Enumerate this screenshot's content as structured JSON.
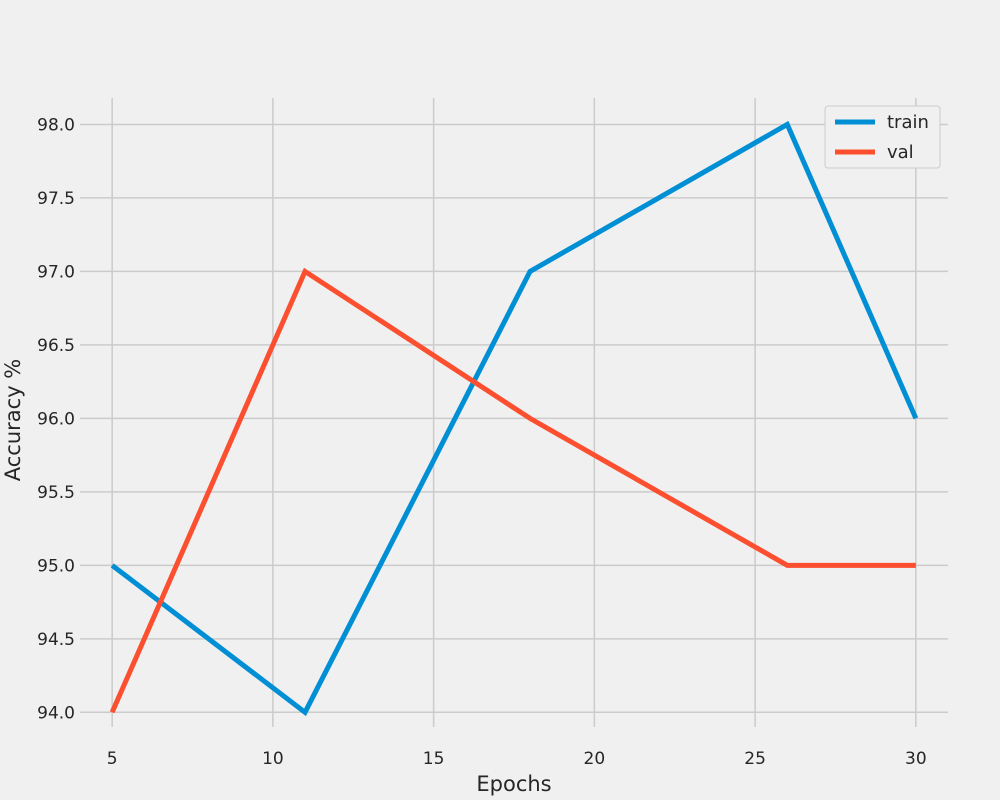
{
  "chart_data": {
    "type": "line",
    "title": "",
    "xlabel": "Epochs",
    "ylabel": "Accuracy %",
    "x": [
      5,
      11,
      18,
      26,
      30
    ],
    "xlim": [
      4,
      31
    ],
    "ylim": [
      93.9,
      98.18
    ],
    "xticks": [
      5,
      10,
      15,
      20,
      25,
      30
    ],
    "yticks": [
      "94.0",
      "94.5",
      "95.0",
      "95.5",
      "96.0",
      "96.5",
      "97.0",
      "97.5",
      "98.0"
    ],
    "grid": true,
    "legend_position": "top-right",
    "series": [
      {
        "name": "train",
        "values": [
          95,
          94,
          97,
          98,
          96
        ],
        "color": "#008fd5"
      },
      {
        "name": "val",
        "values": [
          94,
          97,
          96,
          95,
          95
        ],
        "color": "#fc4f30"
      }
    ]
  }
}
